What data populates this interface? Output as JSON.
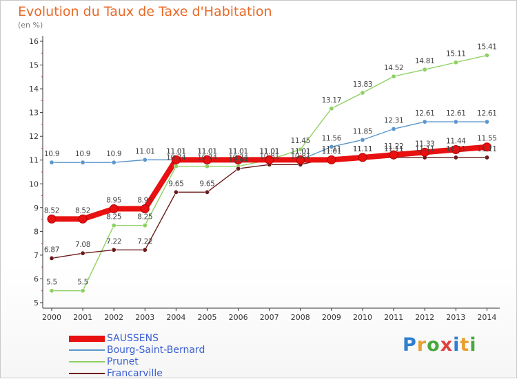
{
  "title": "Evolution du Taux de Taxe d'Habitation",
  "subtitle": "(en %)",
  "logo": [
    "P",
    "r",
    "o",
    "x",
    "i",
    "t",
    "i"
  ],
  "chart_data": {
    "type": "line",
    "title": "Evolution du Taux de Taxe d'Habitation",
    "ylabel": "(en %)",
    "ylim": [
      5,
      16
    ],
    "yticks": [
      "5",
      "6",
      "7",
      "8",
      "9",
      "10",
      "11",
      "12",
      "13",
      "14",
      "15",
      "16"
    ],
    "grid": false,
    "legend": "bottom-left",
    "x": [
      "2000",
      "2001",
      "2002",
      "2003",
      "2004",
      "2005",
      "2006",
      "2007",
      "2008",
      "2009",
      "2010",
      "2011",
      "2012",
      "2013",
      "2014"
    ],
    "series": [
      {
        "name": "Prunet",
        "color": "#8ed163",
        "values": [
          5.5,
          5.5,
          8.25,
          8.25,
          10.74,
          10.74,
          10.74,
          11.01,
          11.45,
          13.17,
          13.83,
          14.52,
          14.81,
          15.11,
          15.41
        ],
        "labels": [
          "5.5",
          "5.5",
          "8.25",
          "8.25",
          "10.74",
          "10.74",
          "10.74",
          "11.01",
          "11.45",
          "13.17",
          "13.83",
          "14.52",
          "14.81",
          "15.11",
          "15.41"
        ]
      },
      {
        "name": "Bourg-Saint-Bernard",
        "color": "#5b96cc",
        "values": [
          10.9,
          10.9,
          10.9,
          11.01,
          11.01,
          11.01,
          11.01,
          11.01,
          11.01,
          11.56,
          11.85,
          12.31,
          12.61,
          12.61,
          12.61
        ],
        "labels": [
          "10.9",
          "10.9",
          "10.9",
          "11.01",
          "11.01",
          "11.01",
          "11.01",
          "11.01",
          "11.01",
          "11.56",
          "11.85",
          "12.31",
          "12.61",
          "12.61",
          "12.61"
        ]
      },
      {
        "name": "Francarville",
        "color": "#6b1a1a",
        "values": [
          6.87,
          7.08,
          7.22,
          7.22,
          9.65,
          9.65,
          10.64,
          10.81,
          10.81,
          11.11,
          11.11,
          11.11,
          11.11,
          11.11,
          11.11
        ],
        "labels": [
          "6.87",
          "7.08",
          "7.22",
          "7.22",
          "9.65",
          "9.65",
          "10.64",
          "10.81",
          "10.81",
          "11.11",
          "11.11",
          "11.11",
          "11.11",
          "11.11",
          "11.11"
        ]
      },
      {
        "name": "SAUSSENS",
        "color": "#e81010",
        "values": [
          8.52,
          8.52,
          8.95,
          8.95,
          11.01,
          11.01,
          11.01,
          11.01,
          11.01,
          11.01,
          11.11,
          11.22,
          11.33,
          11.44,
          11.55
        ],
        "labels": [
          "8.52",
          "8.52",
          "8.95",
          "8.95",
          "11.01",
          "11.01",
          "11.01",
          "11.01",
          "11.01",
          "11.01",
          "11.11",
          "11.22",
          "11.33",
          "11.44",
          "11.55"
        ]
      }
    ],
    "legend_order": [
      "SAUSSENS",
      "Bourg-Saint-Bernard",
      "Prunet",
      "Francarville"
    ]
  }
}
